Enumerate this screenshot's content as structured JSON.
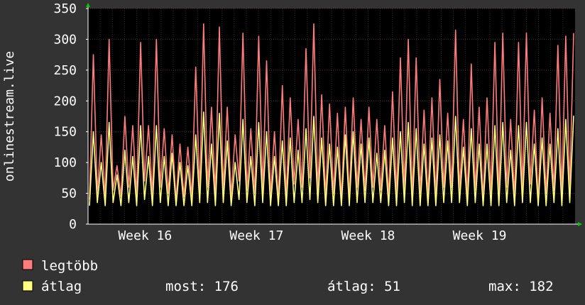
{
  "chart_data": {
    "type": "line",
    "ylabel": "onlinestream.live",
    "ylim": [
      0,
      350
    ],
    "yticks": [
      0,
      50,
      100,
      150,
      200,
      250,
      300,
      350
    ],
    "x_week_labels": [
      "Week 16",
      "Week 17",
      "Week 18",
      "Week 19"
    ],
    "series": [
      {
        "name": "legtöbb",
        "color": "#ff7c7c",
        "values": [
          40,
          275,
          50,
          145,
          45,
          300,
          55,
          95,
          45,
          175,
          60,
          160,
          45,
          295,
          70,
          160,
          45,
          300,
          60,
          155,
          50,
          145,
          40,
          130,
          45,
          125,
          45,
          255,
          50,
          325,
          60,
          190,
          50,
          320,
          55,
          190,
          45,
          145,
          70,
          310,
          55,
          155,
          50,
          305,
          55,
          265,
          45,
          150,
          40,
          225,
          45,
          205,
          65,
          170,
          60,
          285,
          75,
          325,
          55,
          210,
          45,
          195,
          50,
          180,
          40,
          190,
          45,
          205,
          60,
          170,
          55,
          190,
          60,
          170,
          55,
          160,
          45,
          215,
          50,
          270,
          55,
          300,
          40,
          270,
          50,
          185,
          45,
          205,
          45,
          235,
          60,
          180,
          60,
          315,
          55,
          170,
          45,
          260,
          55,
          190,
          40,
          205,
          50,
          295,
          45,
          310,
          60,
          170,
          45,
          295,
          55,
          310,
          65,
          185,
          40,
          205,
          50,
          180,
          55,
          290,
          50,
          305,
          55,
          310
        ],
        "stats": {
          "most": "",
          "atlag": "",
          "max": ""
        }
      },
      {
        "name": "átlag",
        "color": "#ffff80",
        "values": [
          30,
          150,
          35,
          100,
          30,
          165,
          35,
          80,
          30,
          120,
          35,
          110,
          30,
          160,
          40,
          110,
          30,
          160,
          35,
          110,
          30,
          115,
          30,
          100,
          30,
          95,
          30,
          145,
          35,
          182,
          35,
          130,
          30,
          180,
          35,
          135,
          30,
          100,
          40,
          170,
          35,
          110,
          30,
          165,
          35,
          150,
          30,
          110,
          30,
          135,
          30,
          140,
          35,
          120,
          35,
          155,
          40,
          175,
          35,
          140,
          30,
          130,
          30,
          125,
          30,
          145,
          30,
          150,
          35,
          130,
          35,
          140,
          35,
          115,
          35,
          120,
          30,
          140,
          30,
          150,
          35,
          165,
          30,
          155,
          30,
          130,
          30,
          140,
          30,
          145,
          35,
          135,
          35,
          175,
          35,
          125,
          30,
          155,
          35,
          130,
          30,
          130,
          30,
          160,
          30,
          165,
          35,
          120,
          30,
          160,
          35,
          165,
          35,
          130,
          30,
          140,
          30,
          130,
          35,
          155,
          30,
          170,
          35,
          176
        ],
        "stats": {
          "most": "most: 176",
          "atlag": "átlag: 51",
          "max": "max: 182"
        }
      }
    ],
    "grid": true
  }
}
